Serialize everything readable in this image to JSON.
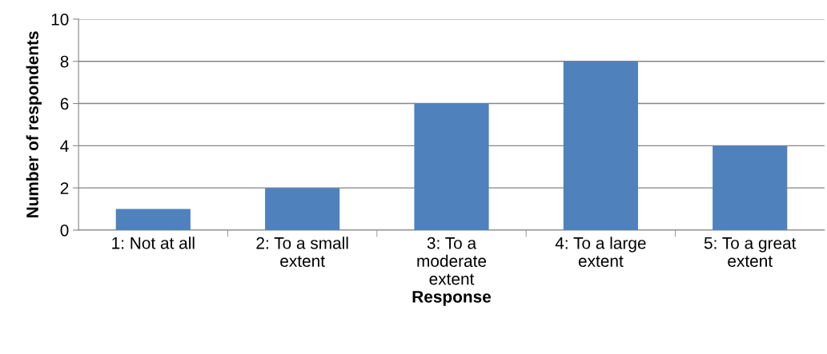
{
  "chart_data": {
    "type": "bar",
    "xlabel": "Response",
    "ylabel": "Number of respondents",
    "categories": [
      "1: Not at all",
      "2: To a small\nextent",
      "3: To a\nmoderate\nextent",
      "4: To a large\nextent",
      "5: To a great\nextent"
    ],
    "values": [
      1,
      2,
      6,
      8,
      4
    ],
    "color": "#4f81bd",
    "ylim": [
      0,
      10
    ],
    "yticks": [
      0,
      2,
      4,
      6,
      8,
      10
    ],
    "grid": "y",
    "legend": false
  }
}
